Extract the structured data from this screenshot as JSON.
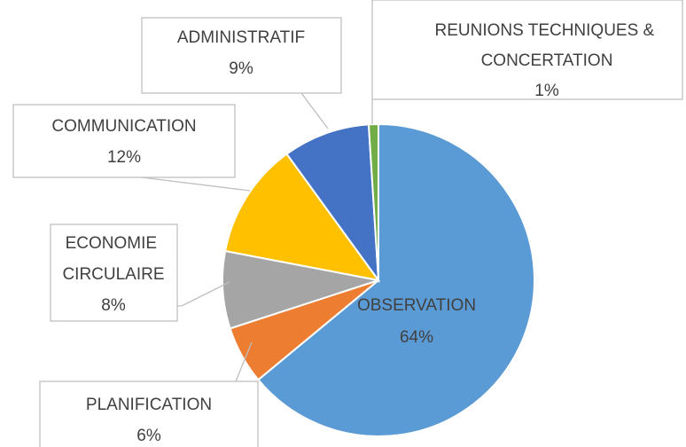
{
  "chart_data": {
    "type": "pie",
    "categories": [
      "OBSERVATION",
      "PLANIFICATION",
      "ECONOMIE CIRCULAIRE",
      "COMMUNICATION",
      "ADMINISTRATIF",
      "REUNIONS TECHNIQUES & CONCERTATION"
    ],
    "values": [
      64,
      6,
      8,
      12,
      9,
      1
    ],
    "value_labels": [
      "64%",
      "6%",
      "8%",
      "12%",
      "9%",
      "1%"
    ],
    "colors": [
      "#5b9bd5",
      "#ed7d31",
      "#a5a5a5",
      "#ffc000",
      "#4472c4",
      "#70ad47"
    ]
  }
}
